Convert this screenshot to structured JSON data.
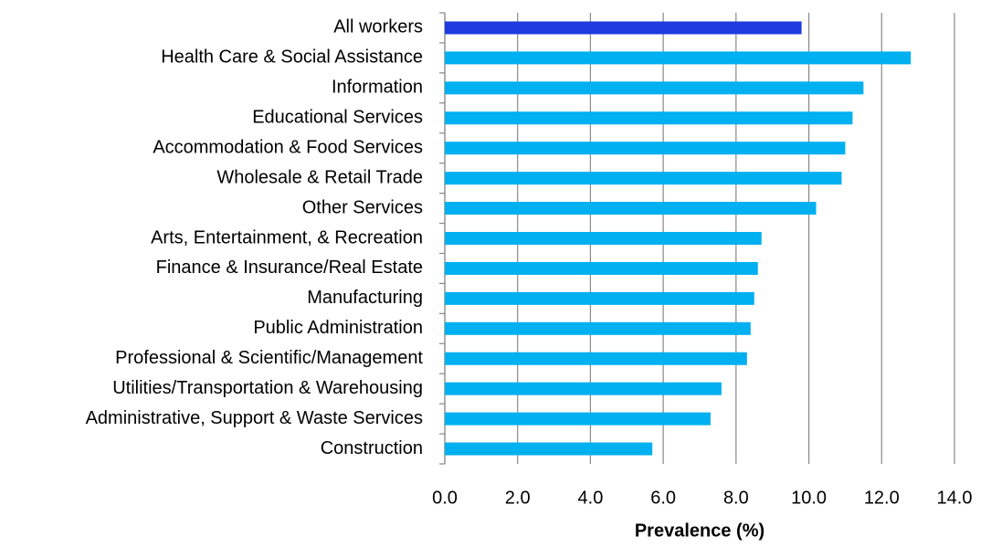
{
  "chart_data": {
    "type": "barh",
    "x_label": "Prevalence (%)",
    "categories": [
      "All workers",
      "Health Care & Social Assistance",
      "Information",
      "Educational Services",
      "Accommodation & Food Services",
      "Wholesale & Retail Trade",
      "Other Services",
      "Arts, Entertainment, & Recreation",
      "Finance & Insurance/Real Estate",
      "Manufacturing",
      "Public Administration",
      "Professional & Scientific/Management",
      "Utilities/Transportation & Warehousing",
      "Administrative, Support & Waste Services",
      "Construction"
    ],
    "values": [
      9.8,
      12.8,
      11.5,
      11.2,
      11.0,
      10.9,
      10.2,
      8.7,
      8.6,
      8.5,
      8.4,
      8.3,
      7.6,
      7.3,
      5.7
    ],
    "colors": [
      "#1f3be0",
      "#00b0f0",
      "#00b0f0",
      "#00b0f0",
      "#00b0f0",
      "#00b0f0",
      "#00b0f0",
      "#00b0f0",
      "#00b0f0",
      "#00b0f0",
      "#00b0f0",
      "#00b0f0",
      "#00b0f0",
      "#00b0f0",
      "#00b0f0"
    ],
    "xlim": [
      0,
      14
    ],
    "xticks": [
      {
        "value": 0,
        "label": "0.0"
      },
      {
        "value": 2,
        "label": "2.0"
      },
      {
        "value": 4,
        "label": "4.0"
      },
      {
        "value": 6,
        "label": "6.0"
      },
      {
        "value": 8,
        "label": "8.0"
      },
      {
        "value": 10,
        "label": "10.0"
      },
      {
        "value": 12,
        "label": "12.0"
      },
      {
        "value": 14,
        "label": "14.0"
      }
    ],
    "grid": true
  }
}
